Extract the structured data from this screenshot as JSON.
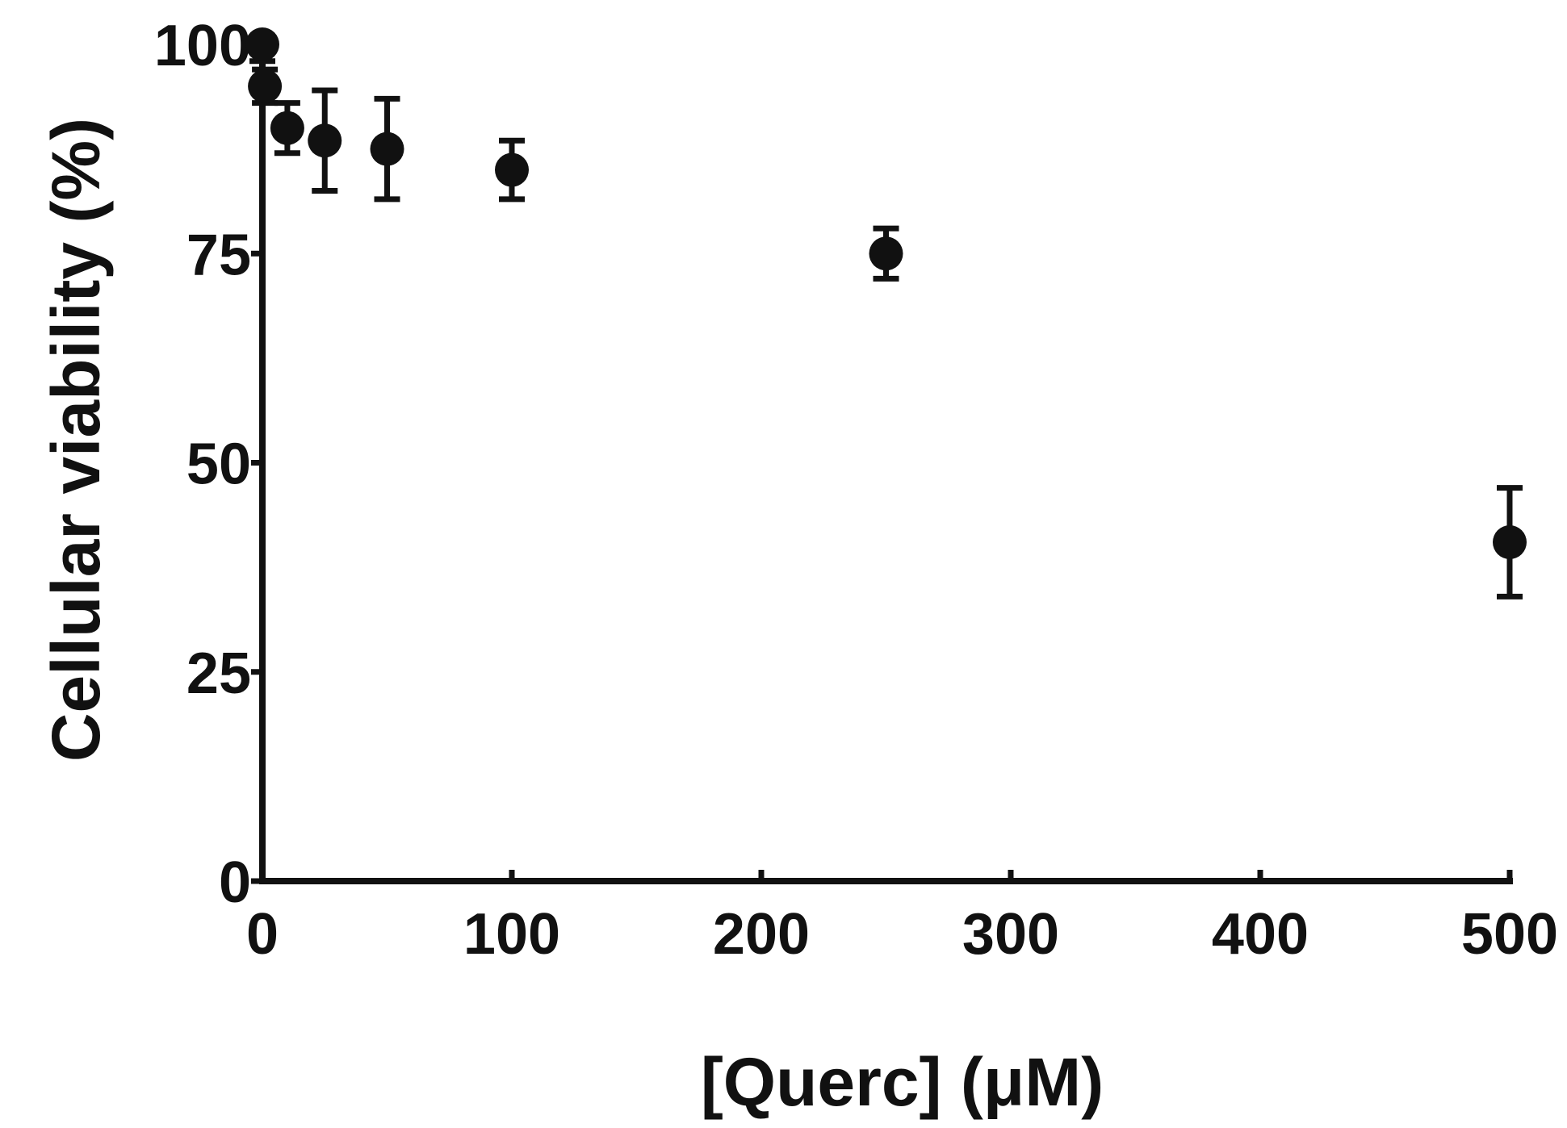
{
  "chart_data": {
    "type": "scatter",
    "title": "",
    "xlabel": "[Querc] (μM)",
    "ylabel": "Cellular viability (%)",
    "xlim": [
      0,
      500
    ],
    "ylim": [
      0,
      100
    ],
    "x_ticks": [
      0,
      100,
      200,
      300,
      400,
      500
    ],
    "y_ticks": [
      0,
      25,
      50,
      75,
      100
    ],
    "x_tick_labels": [
      "0",
      "100",
      "200",
      "300",
      "400",
      "500"
    ],
    "y_tick_labels": [
      "0",
      "25",
      "50",
      "75",
      "100"
    ],
    "grid": false,
    "legend": "none",
    "marker_color": "#111111",
    "points": [
      {
        "x": 0,
        "y": 100,
        "err_low": 98,
        "err_high": 100.5
      },
      {
        "x": 1,
        "y": 95,
        "err_low": 93,
        "err_high": 97
      },
      {
        "x": 10,
        "y": 90,
        "err_low": 87,
        "err_high": 93
      },
      {
        "x": 25,
        "y": 88.5,
        "err_low": 82.5,
        "err_high": 94.5
      },
      {
        "x": 50,
        "y": 87.5,
        "err_low": 81.5,
        "err_high": 93.5
      },
      {
        "x": 100,
        "y": 85,
        "err_low": 81.5,
        "err_high": 88.5
      },
      {
        "x": 250,
        "y": 75,
        "err_low": 72,
        "err_high": 78
      },
      {
        "x": 500,
        "y": 40.5,
        "err_low": 34,
        "err_high": 47
      }
    ]
  }
}
